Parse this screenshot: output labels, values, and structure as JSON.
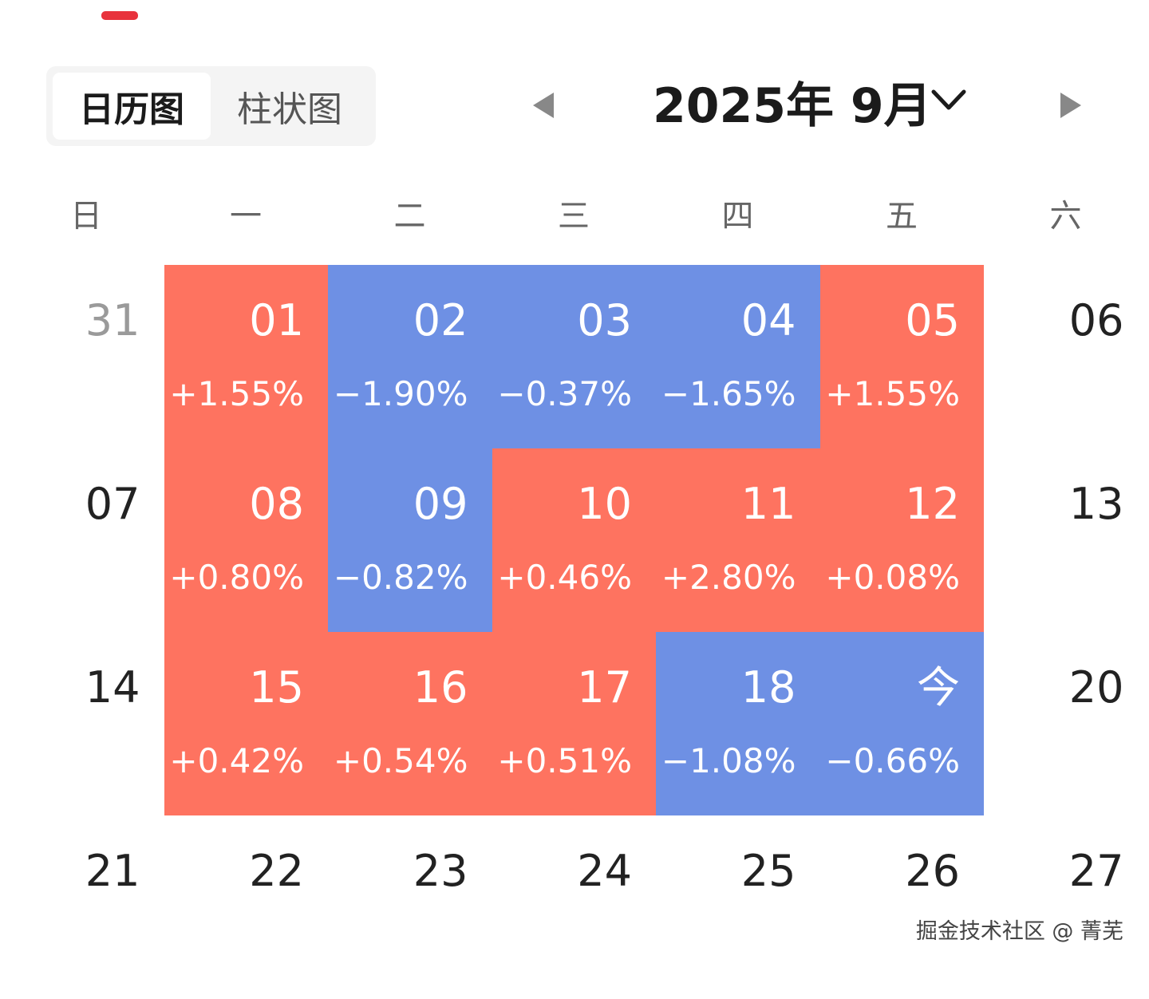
{
  "view_tabs": [
    "日历图",
    "柱状图"
  ],
  "title": {
    "year_month": "2025年 9月"
  },
  "weekdays": [
    "日",
    "一",
    "二",
    "三",
    "四",
    "五",
    "六"
  ],
  "colors": {
    "up": "#fe7360",
    "down": "#6e90e4",
    "accent": "#e8323c"
  },
  "weeks": [
    [
      {
        "day": "31",
        "pct": "",
        "type": "prev"
      },
      {
        "day": "01",
        "pct": "+1.55%",
        "type": "up"
      },
      {
        "day": "02",
        "pct": "−1.90%",
        "type": "down"
      },
      {
        "day": "03",
        "pct": "−0.37%",
        "type": "down"
      },
      {
        "day": "04",
        "pct": "−1.65%",
        "type": "down"
      },
      {
        "day": "05",
        "pct": "+1.55%",
        "type": "up"
      },
      {
        "day": "06",
        "pct": "",
        "type": "none"
      }
    ],
    [
      {
        "day": "07",
        "pct": "",
        "type": "none"
      },
      {
        "day": "08",
        "pct": "+0.80%",
        "type": "up"
      },
      {
        "day": "09",
        "pct": "−0.82%",
        "type": "down"
      },
      {
        "day": "10",
        "pct": "+0.46%",
        "type": "up"
      },
      {
        "day": "11",
        "pct": "+2.80%",
        "type": "up"
      },
      {
        "day": "12",
        "pct": "+0.08%",
        "type": "up"
      },
      {
        "day": "13",
        "pct": "",
        "type": "none"
      }
    ],
    [
      {
        "day": "14",
        "pct": "",
        "type": "none"
      },
      {
        "day": "15",
        "pct": "+0.42%",
        "type": "up"
      },
      {
        "day": "16",
        "pct": "+0.54%",
        "type": "up"
      },
      {
        "day": "17",
        "pct": "+0.51%",
        "type": "up"
      },
      {
        "day": "18",
        "pct": "−1.08%",
        "type": "down"
      },
      {
        "day": "今",
        "pct": "−0.66%",
        "type": "down"
      },
      {
        "day": "20",
        "pct": "",
        "type": "none"
      }
    ],
    [
      {
        "day": "21",
        "pct": "",
        "type": "none"
      },
      {
        "day": "22",
        "pct": "",
        "type": "none"
      },
      {
        "day": "23",
        "pct": "",
        "type": "none"
      },
      {
        "day": "24",
        "pct": "",
        "type": "none"
      },
      {
        "day": "25",
        "pct": "",
        "type": "none"
      },
      {
        "day": "26",
        "pct": "",
        "type": "none"
      },
      {
        "day": "27",
        "pct": "",
        "type": "none"
      }
    ]
  ],
  "watermark": "掘金技术社区 @ 菁芜"
}
